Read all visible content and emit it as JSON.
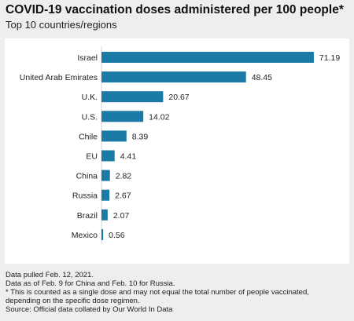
{
  "title": "COVID-19 vaccination doses administered per 100 people*",
  "subtitle": "Top 10 countries/regions",
  "colors": {
    "bar": "#1b7ba6",
    "background": "#eeeeee",
    "panel": "#ffffff"
  },
  "notes": {
    "line1": "Data pulled Feb. 12, 2021.",
    "line2": "Data as of Feb. 9 for China and Feb. 10 for Russia.",
    "line3": "* This is counted as a single dose and may not equal the total number of people vaccinated,",
    "line4": "depending on the specific dose regimen.",
    "line5": "Source: Official data collated by Our World In Data"
  },
  "chart_data": {
    "type": "bar",
    "orientation": "horizontal",
    "categories": [
      "Israel",
      "United Arab Emirates",
      "U.K.",
      "U.S.",
      "Chile",
      "EU",
      "China",
      "Russia",
      "Brazil",
      "Mexico"
    ],
    "values": [
      71.19,
      48.45,
      20.67,
      14.02,
      8.39,
      4.41,
      2.82,
      2.67,
      2.07,
      0.56
    ],
    "value_labels": [
      "71.19",
      "48.45",
      "20.67",
      "14.02",
      "8.39",
      "4.41",
      "2.82",
      "2.67",
      "2.07",
      "0.56"
    ],
    "title": "COVID-19 vaccination doses administered per 100 people*",
    "subtitle": "Top 10 countries/regions",
    "xlim": [
      0,
      72
    ],
    "grid": false,
    "legend": "none"
  }
}
